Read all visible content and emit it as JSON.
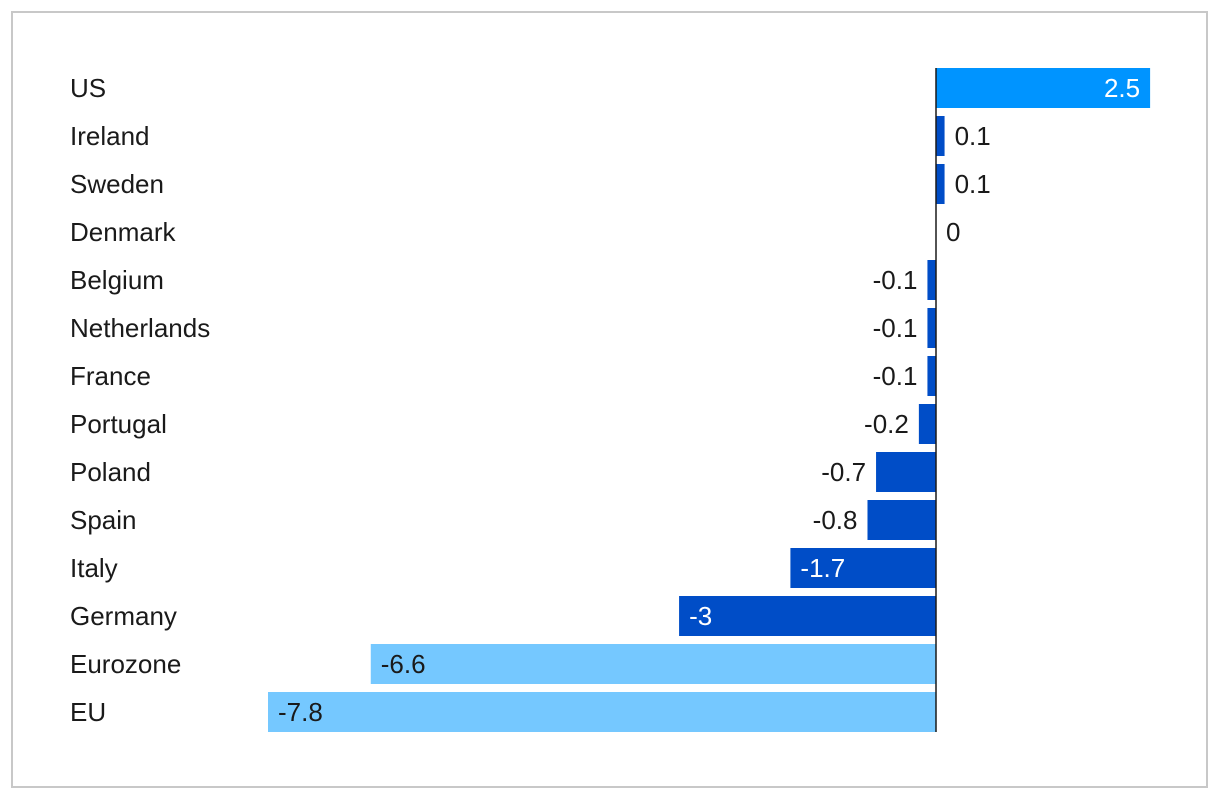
{
  "chart_data": {
    "type": "bar",
    "orientation": "horizontal",
    "categories": [
      "US",
      "Ireland",
      "Sweden",
      "Denmark",
      "Belgium",
      "Netherlands",
      "France",
      "Portugal",
      "Poland",
      "Spain",
      "Italy",
      "Germany",
      "Eurozone",
      "EU"
    ],
    "values": [
      2.5,
      0.1,
      0.1,
      0,
      -0.1,
      -0.1,
      -0.1,
      -0.2,
      -0.7,
      -0.8,
      -1.7,
      -3,
      -6.6,
      -7.8
    ],
    "value_labels": [
      "2.5",
      "0.1",
      "0.1",
      "0",
      "-0.1",
      "-0.1",
      "-0.1",
      "-0.2",
      "-0.7",
      "-0.8",
      "-1.7",
      "-3",
      "-6.6",
      "-7.8"
    ],
    "bar_colors": [
      "#0094ff",
      "#004dc7",
      "#004dc7",
      "#004dc7",
      "#004dc7",
      "#004dc7",
      "#004dc7",
      "#004dc7",
      "#004dc7",
      "#004dc7",
      "#004dc7",
      "#004dc7",
      "#75c8ff",
      "#75c8ff"
    ],
    "label_colors": [
      "#ffffff",
      "#1a1a1a",
      "#1a1a1a",
      "#1a1a1a",
      "#1a1a1a",
      "#1a1a1a",
      "#1a1a1a",
      "#1a1a1a",
      "#1a1a1a",
      "#1a1a1a",
      "#ffffff",
      "#ffffff",
      "#1a1a1a",
      "#1a1a1a"
    ],
    "label_placement": [
      "inside",
      "outside",
      "outside",
      "outside",
      "outside",
      "outside",
      "outside",
      "outside",
      "outside",
      "outside",
      "inside",
      "inside",
      "inside",
      "inside"
    ],
    "xlim": [
      -7.8,
      2.5
    ],
    "grid": false,
    "legend": "none",
    "title": "",
    "xlabel": "",
    "ylabel": ""
  }
}
